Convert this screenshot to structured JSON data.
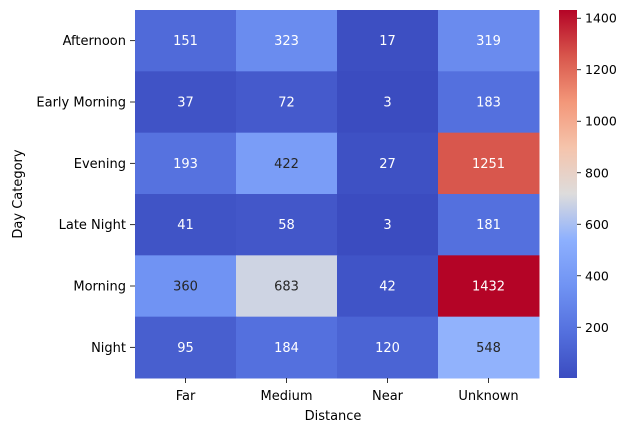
{
  "chart_data": {
    "type": "heatmap",
    "xlabel": "Distance",
    "ylabel": "Day Category",
    "x_categories": [
      "Far",
      "Medium",
      "Near",
      "Unknown"
    ],
    "y_categories": [
      "Afternoon",
      "Early Morning",
      "Evening",
      "Late Night",
      "Morning",
      "Night"
    ],
    "values": [
      [
        151,
        323,
        17,
        319
      ],
      [
        37,
        72,
        3,
        183
      ],
      [
        193,
        422,
        27,
        1251
      ],
      [
        41,
        58,
        3,
        181
      ],
      [
        360,
        683,
        42,
        1432
      ],
      [
        95,
        184,
        120,
        548
      ]
    ],
    "colormap": "coolwarm",
    "vmin": 3,
    "vmax": 1432,
    "colorbar_ticks": [
      200,
      400,
      600,
      800,
      1000,
      1200,
      1400
    ],
    "annotations": true
  }
}
